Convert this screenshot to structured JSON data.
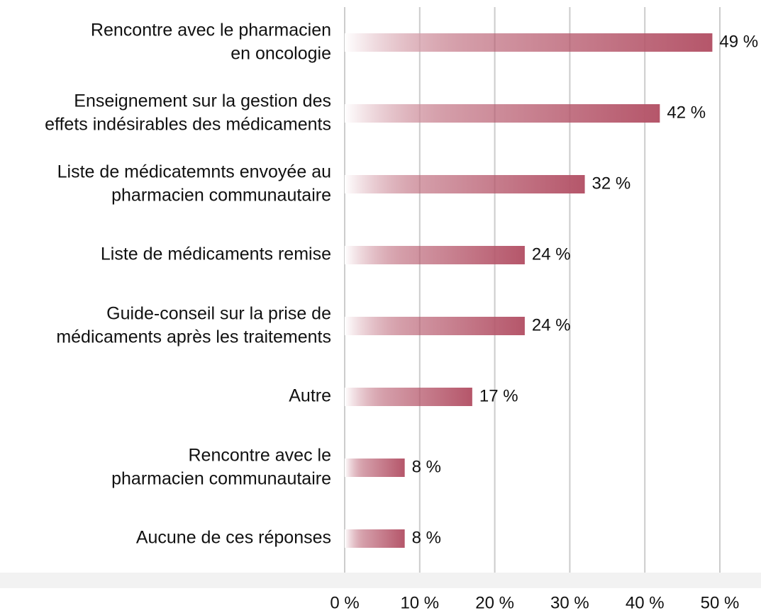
{
  "chart_data": {
    "type": "barh",
    "categories": [
      "Rencontre avec le pharmacien\nen oncologie",
      "Enseignement sur la gestion des\neffets indésirables des médicaments",
      "Liste de médicatemnts envoyée au\npharmacien communautaire",
      "Liste de médicaments remise",
      "Guide-conseil sur la prise de\nmédicaments après les traitements",
      "Autre",
      "Rencontre avec le\npharmacien communautaire",
      "Aucune de ces réponses"
    ],
    "values": [
      49,
      42,
      32,
      24,
      24,
      17,
      8,
      8
    ],
    "value_labels": [
      "49 %",
      "42 %",
      "32 %",
      "24 %",
      "24 %",
      "17 %",
      "8 %",
      "8 %"
    ],
    "color": "#b5566a",
    "xlim": [
      0,
      50
    ],
    "xticks": [
      {
        "value": 0,
        "label": "0 %"
      },
      {
        "value": 10,
        "label": "10 %"
      },
      {
        "value": 20,
        "label": "20 %"
      },
      {
        "value": 30,
        "label": "30 %"
      },
      {
        "value": 40,
        "label": "40 %"
      },
      {
        "value": 50,
        "label": "50 %"
      }
    ],
    "grid": true
  }
}
